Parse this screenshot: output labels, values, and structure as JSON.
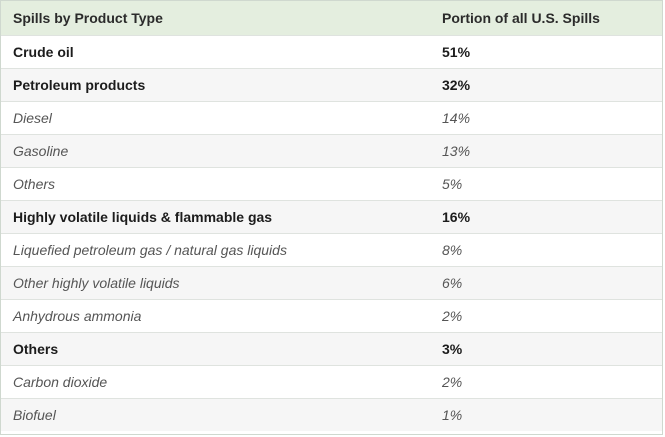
{
  "table": {
    "headers": [
      "Spills by Product Type",
      "Portion of all U.S. Spills"
    ],
    "rows": [
      {
        "label": "Crude oil",
        "value": "51%",
        "kind": "category"
      },
      {
        "label": "Petroleum products",
        "value": "32%",
        "kind": "category"
      },
      {
        "label": "Diesel",
        "value": "14%",
        "kind": "sub"
      },
      {
        "label": "Gasoline",
        "value": "13%",
        "kind": "sub"
      },
      {
        "label": "Others",
        "value": "5%",
        "kind": "sub"
      },
      {
        "label": "Highly volatile liquids & flammable gas",
        "value": "16%",
        "kind": "category"
      },
      {
        "label": "Liquefied petroleum gas / natural gas liquids",
        "value": "8%",
        "kind": "sub"
      },
      {
        "label": "Other highly volatile liquids",
        "value": "6%",
        "kind": "sub"
      },
      {
        "label": "Anhydrous ammonia",
        "value": "2%",
        "kind": "sub"
      },
      {
        "label": "Others",
        "value": "3%",
        "kind": "category"
      },
      {
        "label": "Carbon dioxide",
        "value": "2%",
        "kind": "sub"
      },
      {
        "label": "Biofuel",
        "value": "1%",
        "kind": "sub"
      }
    ]
  }
}
